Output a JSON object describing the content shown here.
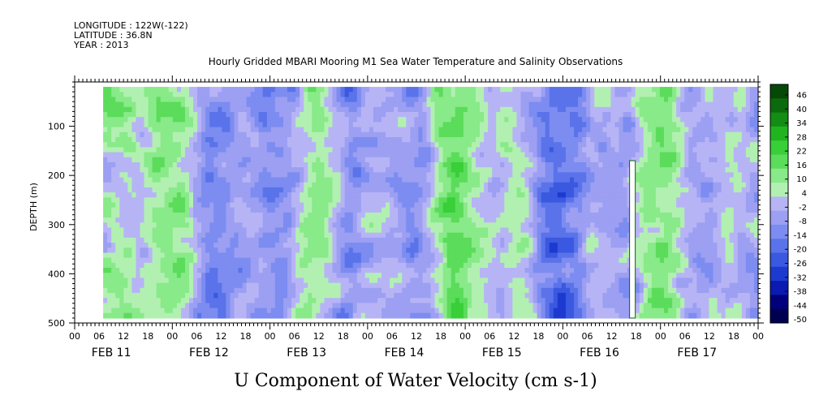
{
  "header": {
    "longitude": "LONGITUDE : 122W(-122)",
    "latitude": "LATITUDE : 36.8N",
    "year": "YEAR : 2013",
    "title": "Hourly Gridded MBARI Mooring M1 Sea Water Temperature and Salinity Observations"
  },
  "caption": "U Component of Water Velocity (cm s-1)",
  "chart_data": {
    "type": "heatmap",
    "title": "Hourly Gridded MBARI Mooring M1 Sea Water Temperature and Salinity Observations",
    "variable": "U Component of Water Velocity (cm s-1)",
    "ylabel": "DEPTH (m)",
    "y_reversed": true,
    "ylim": [
      500,
      10
    ],
    "y_ticks": [
      100,
      200,
      300,
      400,
      500
    ],
    "y_tick_labels": [
      "100",
      "200",
      "300",
      "400",
      "500"
    ],
    "x_hours_per_day": 24,
    "x_days": [
      "FEB 11",
      "FEB 12",
      "FEB 13",
      "FEB 14",
      "FEB 15",
      "FEB 16",
      "FEB 17"
    ],
    "x_hour_labels": [
      "00",
      "06",
      "12",
      "18"
    ],
    "x_range_hours": [
      0,
      168
    ],
    "data_start_hour": 7,
    "depth_range_data": [
      20,
      490
    ],
    "colorbar_levels": [
      -50,
      -44,
      -38,
      -32,
      -26,
      -20,
      -14,
      -8,
      -2,
      4,
      10,
      16,
      22,
      28,
      34,
      40,
      46
    ],
    "colorbar_labels": [
      "46",
      "40",
      "34",
      "28",
      "22",
      "16",
      "10",
      "4",
      "-2",
      "-8",
      "-14",
      "-20",
      "-26",
      "-32",
      "-38",
      "-44",
      "-50"
    ],
    "colors": {
      "strong_negative": "#000080",
      "negative": "#5050e0",
      "weak_negative": "#b0b0f8",
      "weak_positive": "#a8f0a8",
      "positive": "#30d030",
      "strong_positive": "#006000"
    },
    "missing_data_column_hour": 137,
    "field_description": "alternating bands of weak positive (green) and weak negative (blue-violet) velocity, mostly between -14 and +22 cm/s"
  }
}
